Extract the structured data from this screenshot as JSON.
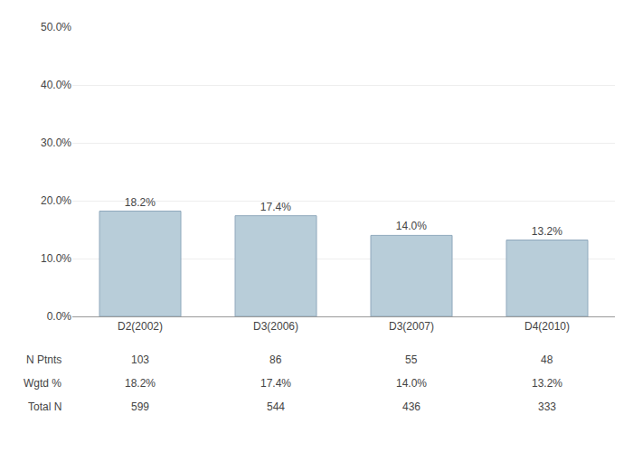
{
  "chart_data": {
    "type": "bar",
    "categories": [
      "D2(2002)",
      "D3(2006)",
      "D3(2007)",
      "D4(2010)"
    ],
    "values": [
      18.2,
      17.4,
      14.0,
      13.2
    ],
    "value_labels": [
      "18.2%",
      "17.4%",
      "14.0%",
      "13.2%"
    ],
    "data_labels": true,
    "color": "#b8cdd9",
    "ylim": [
      0,
      50
    ],
    "yticks": [
      {
        "value": 0,
        "label": "0.0%"
      },
      {
        "value": 10,
        "label": "10.0%"
      },
      {
        "value": 20,
        "label": "20.0%"
      },
      {
        "value": 30,
        "label": "30.0%"
      },
      {
        "value": 40,
        "label": "40.0%"
      },
      {
        "value": 50,
        "label": "50.0%"
      }
    ],
    "grid": true,
    "table": [
      {
        "label": "N Ptnts",
        "values": [
          103,
          86,
          55,
          48
        ]
      },
      {
        "label": "Wgtd %",
        "values": [
          "18.2%",
          "17.4%",
          "14.0%",
          "13.2%"
        ]
      },
      {
        "label": "Total N",
        "values": [
          599,
          544,
          436,
          333
        ]
      }
    ]
  }
}
